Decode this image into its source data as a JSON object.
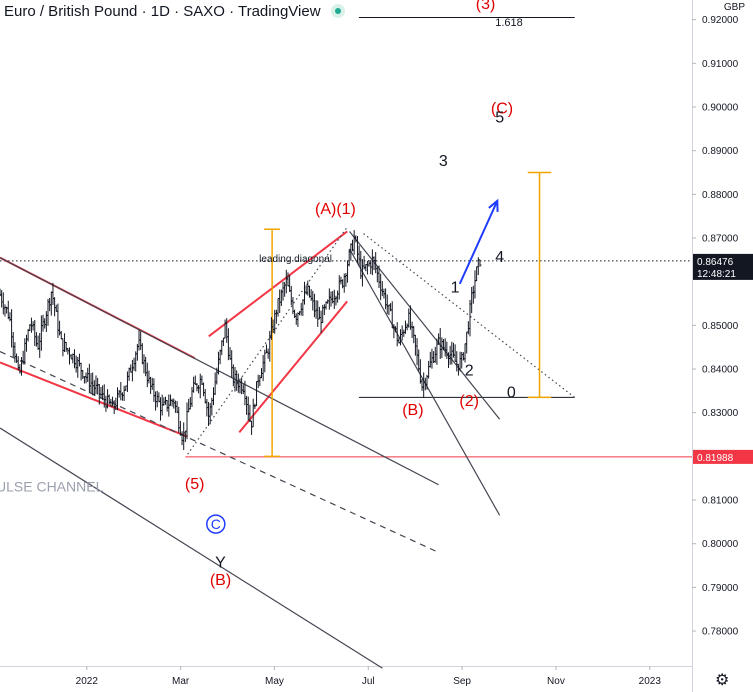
{
  "header": {
    "title": "Euro / British Pound · 1D · SAXO · TradingView"
  },
  "currency": "GBP",
  "chart_data": {
    "type": "candlestick",
    "title": "Euro / British Pound · 1D · SAXO · TradingView",
    "ylim": [
      0.772,
      0.9245
    ],
    "xlim_months": [
      -1.85,
      12.9
    ],
    "y_ticks": [
      {
        "v": 0.92,
        "label": "0.92000"
      },
      {
        "v": 0.91,
        "label": "0.91000"
      },
      {
        "v": 0.9,
        "label": "0.90000"
      },
      {
        "v": 0.89,
        "label": "0.89000"
      },
      {
        "v": 0.88,
        "label": "0.88000"
      },
      {
        "v": 0.87,
        "label": "0.87000"
      },
      {
        "v": 0.85,
        "label": "0.85000"
      },
      {
        "v": 0.84,
        "label": "0.84000"
      },
      {
        "v": 0.83,
        "label": "0.83000"
      },
      {
        "v": 0.81,
        "label": "0.81000"
      },
      {
        "v": 0.8,
        "label": "0.80000"
      },
      {
        "v": 0.79,
        "label": "0.79000"
      },
      {
        "v": 0.78,
        "label": "0.78000"
      }
    ],
    "x_ticks": [
      {
        "m": 0,
        "label": "2022"
      },
      {
        "m": 2,
        "label": "Mar"
      },
      {
        "m": 4,
        "label": "May"
      },
      {
        "m": 6,
        "label": "Jul"
      },
      {
        "m": 8,
        "label": "Sep"
      },
      {
        "m": 10,
        "label": "Nov"
      },
      {
        "m": 12,
        "label": "2023"
      }
    ],
    "price_badges": [
      {
        "v": 0.86476,
        "label": "0.86476",
        "sub": "12:48:21",
        "color": "#131722"
      },
      {
        "v": 0.81988,
        "label": "0.81988",
        "color": "#f23645"
      }
    ],
    "price_path": [
      [
        -1.85,
        0.857
      ],
      [
        -1.65,
        0.852
      ],
      [
        -1.45,
        0.838
      ],
      [
        -1.2,
        0.851
      ],
      [
        -1.05,
        0.845
      ],
      [
        -0.75,
        0.858
      ],
      [
        -0.55,
        0.846
      ],
      [
        -0.3,
        0.843
      ],
      [
        0.0,
        0.838
      ],
      [
        0.3,
        0.834
      ],
      [
        0.55,
        0.831
      ],
      [
        0.85,
        0.837
      ],
      [
        1.1,
        0.846
      ],
      [
        1.35,
        0.836
      ],
      [
        1.6,
        0.831
      ],
      [
        1.85,
        0.833
      ],
      [
        2.05,
        0.824
      ],
      [
        2.25,
        0.835
      ],
      [
        2.45,
        0.838
      ],
      [
        2.6,
        0.829
      ],
      [
        2.8,
        0.841
      ],
      [
        2.95,
        0.85
      ],
      [
        3.1,
        0.838
      ],
      [
        3.35,
        0.836
      ],
      [
        3.5,
        0.827
      ],
      [
        3.65,
        0.838
      ],
      [
        3.85,
        0.844
      ],
      [
        4.05,
        0.854
      ],
      [
        4.25,
        0.86
      ],
      [
        4.45,
        0.852
      ],
      [
        4.7,
        0.858
      ],
      [
        4.95,
        0.851
      ],
      [
        5.2,
        0.856
      ],
      [
        5.45,
        0.86
      ],
      [
        5.7,
        0.87
      ],
      [
        5.85,
        0.862
      ],
      [
        6.1,
        0.865
      ],
      [
        6.3,
        0.858
      ],
      [
        6.45,
        0.853
      ],
      [
        6.65,
        0.846
      ],
      [
        6.85,
        0.852
      ],
      [
        7.0,
        0.845
      ],
      [
        7.15,
        0.836
      ],
      [
        7.35,
        0.842
      ],
      [
        7.5,
        0.846
      ],
      [
        7.7,
        0.844
      ],
      [
        7.9,
        0.841
      ],
      [
        8.0,
        0.842
      ],
      [
        8.1,
        0.848
      ],
      [
        8.2,
        0.856
      ],
      [
        8.3,
        0.862
      ],
      [
        8.38,
        0.865
      ]
    ],
    "channel_label": "ULSE CHANNEL",
    "annotations": [
      {
        "text": "(3)",
        "m": 8.5,
        "v": 0.9225,
        "color": "#e00000"
      },
      {
        "text": "1.618",
        "m": 9.0,
        "v": 0.9185,
        "color": "#131722"
      },
      {
        "text": "(C)",
        "m": 8.85,
        "v": 0.8985,
        "color": "#e00000"
      },
      {
        "text": "5",
        "m": 8.8,
        "v": 0.8965,
        "color": "#131722"
      },
      {
        "text": "3",
        "m": 7.6,
        "v": 0.8865,
        "color": "#131722"
      },
      {
        "text": "(A)(1)",
        "m": 5.3,
        "v": 0.8755,
        "color": "#e00000"
      },
      {
        "text": "leading diagonal",
        "m": 4.45,
        "v": 0.8645,
        "color": "#131722"
      },
      {
        "text": "4",
        "m": 8.8,
        "v": 0.8645,
        "color": "#131722"
      },
      {
        "text": "1",
        "m": 7.85,
        "v": 0.8575,
        "color": "#131722"
      },
      {
        "text": "2",
        "m": 8.15,
        "v": 0.8385,
        "color": "#131722"
      },
      {
        "text": "(2)",
        "m": 8.15,
        "v": 0.8315,
        "color": "#e00000"
      },
      {
        "text": "(B)",
        "m": 6.95,
        "v": 0.8295,
        "color": "#e00000"
      },
      {
        "text": "0",
        "m": 9.05,
        "v": 0.8335,
        "color": "#131722"
      },
      {
        "text": "(5)",
        "m": 2.3,
        "v": 0.8125,
        "color": "#e00000"
      },
      {
        "text": "Y",
        "m": 2.85,
        "v": 0.7945,
        "color": "#131722"
      },
      {
        "text": "(B)",
        "m": 2.85,
        "v": 0.7905,
        "color": "#e00000"
      }
    ],
    "circle_label": {
      "text": "C",
      "m": 2.75,
      "v": 0.8045,
      "color": "#1f3cff"
    },
    "levels": [
      {
        "v": 0.9205,
        "from": 5.8,
        "to": 10.4,
        "color": "#131722",
        "style": "solid"
      },
      {
        "v": 0.8335,
        "from": 5.8,
        "to": 10.4,
        "color": "#131722",
        "style": "solid"
      },
      {
        "v": 0.81988,
        "from": 2.1,
        "to": 12.9,
        "color": "#f23645",
        "style": "solid"
      },
      {
        "v": 0.86476,
        "from": -1.85,
        "to": 12.9,
        "color": "#131722",
        "style": "dotted"
      }
    ],
    "trendlines": [
      {
        "p": [
          [
            -1.85,
            0.8655
          ],
          [
            2.3,
            0.8425
          ]
        ],
        "color": "#f23645"
      },
      {
        "p": [
          [
            -1.85,
            0.8415
          ],
          [
            2.15,
            0.8245
          ]
        ],
        "color": "#f23645"
      },
      {
        "p": [
          [
            2.6,
            0.8475
          ],
          [
            5.55,
            0.8715
          ]
        ],
        "color": "#f23645"
      },
      {
        "p": [
          [
            3.25,
            0.8255
          ],
          [
            5.55,
            0.8555
          ]
        ],
        "color": "#f23645"
      },
      {
        "p": [
          [
            -1.85,
            0.8655
          ],
          [
            7.5,
            0.8135
          ]
        ],
        "color": "#434651"
      },
      {
        "p": [
          [
            -1.85,
            0.844
          ],
          [
            7.5,
            0.798
          ]
        ],
        "color": "#434651",
        "dash": true
      },
      {
        "p": [
          [
            -1.85,
            0.8265
          ],
          [
            6.3,
            0.7715
          ]
        ],
        "color": "#434651"
      },
      {
        "p": [
          [
            5.6,
            0.8715
          ],
          [
            8.8,
            0.8285
          ]
        ],
        "color": "#434651"
      },
      {
        "p": [
          [
            5.6,
            0.8675
          ],
          [
            8.8,
            0.8065
          ]
        ],
        "color": "#434651"
      },
      {
        "p": [
          [
            2.15,
            0.8205
          ],
          [
            5.55,
            0.8725
          ]
        ],
        "color": "#434651",
        "dot": true
      },
      {
        "p": [
          [
            5.9,
            0.871
          ],
          [
            10.4,
            0.8335
          ]
        ],
        "color": "#434651",
        "dot": true
      }
    ],
    "measures": [
      {
        "m": 3.95,
        "from": 0.82,
        "to": 0.872,
        "cap": 0.34,
        "color": "#f0a500"
      },
      {
        "m": 9.65,
        "from": 0.8335,
        "to": 0.885,
        "cap": 0.5,
        "color": "#f0a500"
      }
    ],
    "arrow": {
      "from": [
        7.95,
        0.8595
      ],
      "to": [
        8.75,
        0.8785
      ],
      "color": "#1f3cff"
    }
  }
}
